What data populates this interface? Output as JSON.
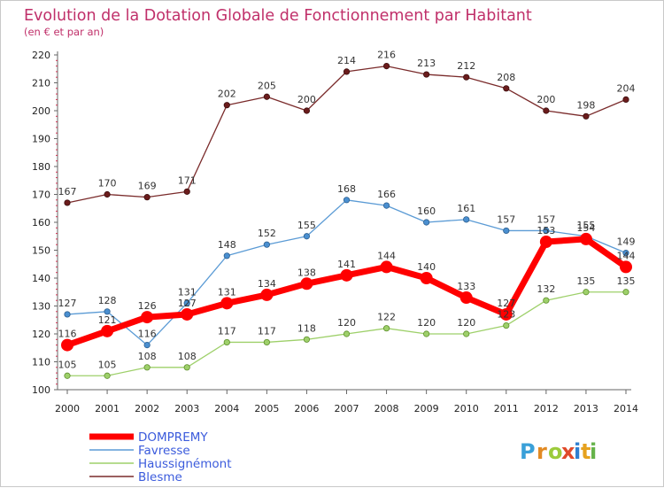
{
  "title": "Evolution de la Dotation Globale de Fonctionnement par Habitant",
  "subtitle": "(en € et par an)",
  "brand": {
    "letters": [
      "P",
      "r",
      "o",
      "x",
      "i",
      "t",
      "i"
    ],
    "colors": [
      "#3aa0d8",
      "#e28a23",
      "#9ccb3b",
      "#e04a2a",
      "#2f7fd0",
      "#e6a21f",
      "#66b34a"
    ]
  },
  "colors": {
    "DOMPREMY": "#ff0000",
    "Favresse": "#5b9bd5",
    "Haussignémont": "#9ed06a",
    "Blesme": "#7a2b2b"
  },
  "chart_data": {
    "type": "line",
    "x": [
      2000,
      2001,
      2002,
      2003,
      2004,
      2005,
      2006,
      2007,
      2008,
      2009,
      2010,
      2011,
      2012,
      2013,
      2014
    ],
    "ylim": [
      100,
      220
    ],
    "yticks": [
      100,
      110,
      120,
      130,
      140,
      150,
      160,
      170,
      180,
      190,
      200,
      210,
      220
    ],
    "grid": false,
    "legend_position": "bottom-left",
    "series": [
      {
        "name": "DOMPREMY",
        "values": [
          116,
          121,
          126,
          127,
          131,
          134,
          138,
          141,
          144,
          140,
          133,
          127,
          153,
          154,
          144
        ]
      },
      {
        "name": "Favresse",
        "values": [
          127,
          128,
          116,
          131,
          148,
          152,
          155,
          168,
          166,
          160,
          161,
          157,
          157,
          155,
          149
        ]
      },
      {
        "name": "Haussignémont",
        "values": [
          105,
          105,
          108,
          108,
          117,
          117,
          118,
          120,
          122,
          120,
          120,
          123,
          132,
          135,
          135
        ]
      },
      {
        "name": "Blesme",
        "values": [
          167,
          170,
          169,
          171,
          202,
          205,
          200,
          214,
          216,
          213,
          212,
          208,
          200,
          198,
          204
        ]
      }
    ]
  }
}
